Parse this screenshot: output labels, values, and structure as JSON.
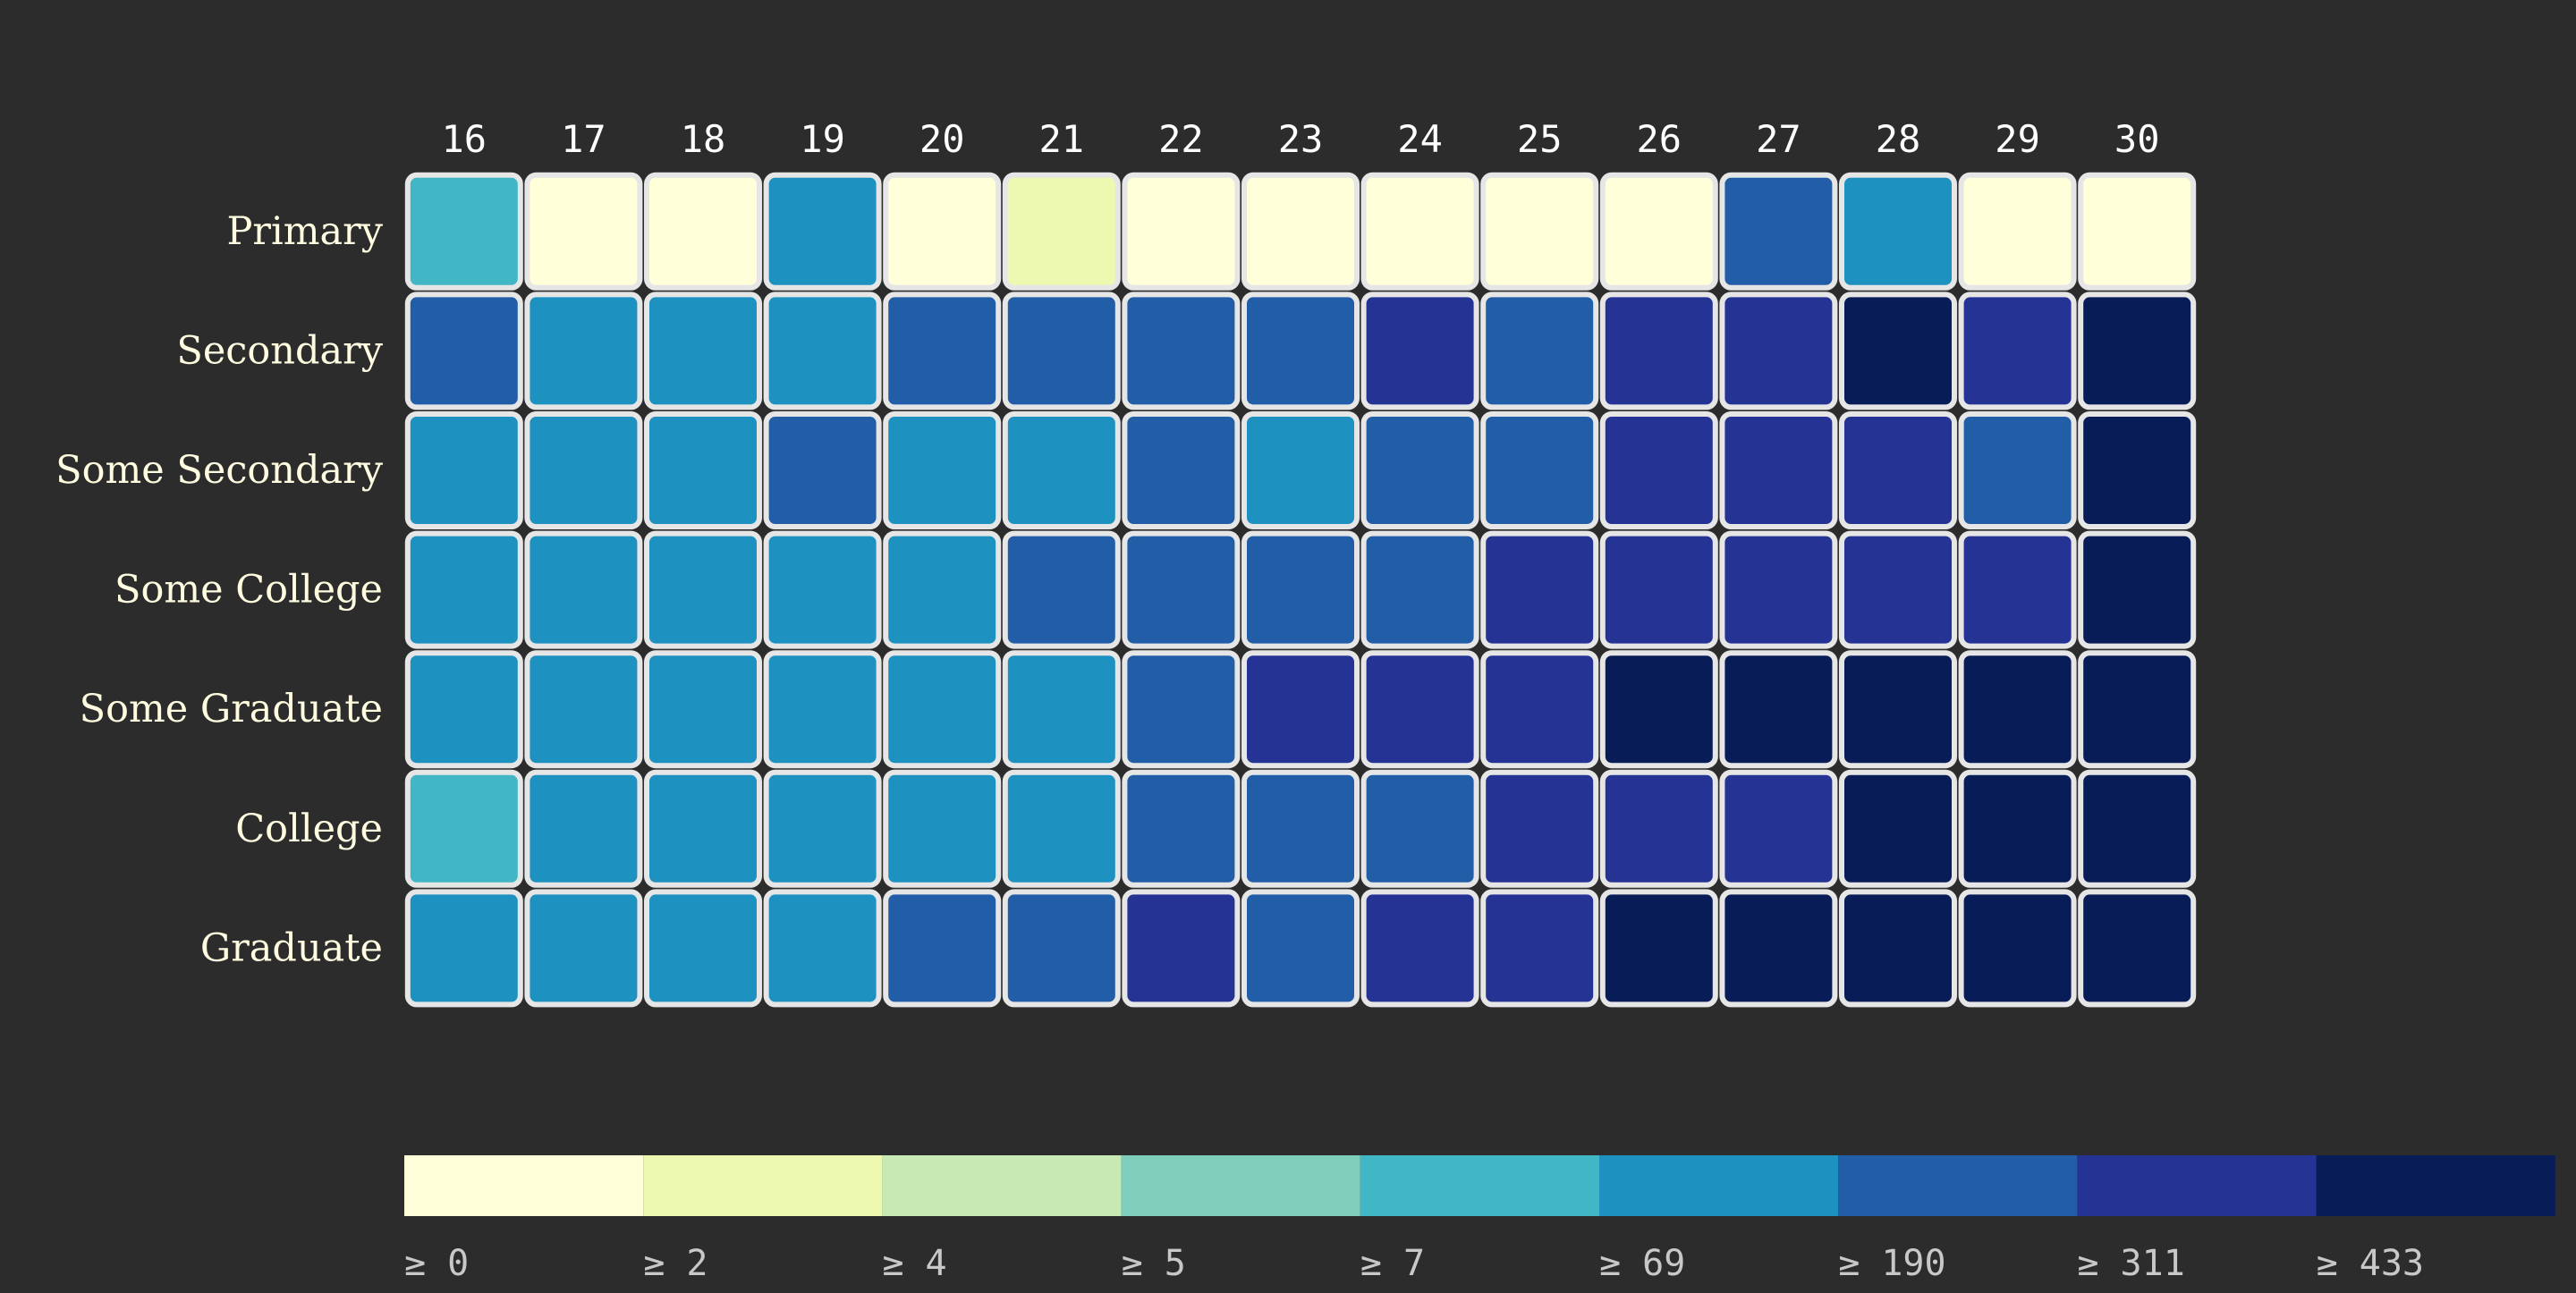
{
  "chart_data": {
    "type": "heatmap",
    "x": [
      "16",
      "17",
      "18",
      "19",
      "20",
      "21",
      "22",
      "23",
      "24",
      "25",
      "26",
      "27",
      "28",
      "29",
      "30"
    ],
    "y": [
      "Primary",
      "Secondary",
      "Some Secondary",
      "Some College",
      "Some Graduate",
      "College",
      "Graduate"
    ],
    "bins": {
      "thresholds": [
        0,
        2,
        4,
        5,
        7,
        69,
        190,
        311,
        433
      ],
      "labels": [
        "≥ 0",
        "≥ 2",
        "≥ 4",
        "≥ 5",
        "≥ 7",
        "≥ 69",
        "≥ 190",
        "≥ 311",
        "≥ 433"
      ],
      "colors": [
        "#ffffd9",
        "#edf8b1",
        "#c7e9b4",
        "#7fcdbb",
        "#41b6c4",
        "#1d91c0",
        "#225ea8",
        "#253494",
        "#081d58"
      ]
    },
    "bin_index": [
      [
        4,
        0,
        0,
        5,
        0,
        1,
        0,
        0,
        0,
        0,
        0,
        6,
        5,
        0,
        0
      ],
      [
        6,
        5,
        5,
        5,
        6,
        6,
        6,
        6,
        7,
        6,
        7,
        7,
        8,
        7,
        8
      ],
      [
        5,
        5,
        5,
        6,
        5,
        5,
        6,
        5,
        6,
        6,
        7,
        7,
        7,
        6,
        8
      ],
      [
        5,
        5,
        5,
        5,
        5,
        6,
        6,
        6,
        6,
        7,
        7,
        7,
        7,
        7,
        8
      ],
      [
        5,
        5,
        5,
        5,
        5,
        5,
        6,
        7,
        7,
        7,
        8,
        8,
        8,
        8,
        8
      ],
      [
        4,
        5,
        5,
        5,
        5,
        5,
        6,
        6,
        6,
        7,
        7,
        7,
        8,
        8,
        8
      ],
      [
        5,
        5,
        5,
        5,
        6,
        6,
        7,
        6,
        7,
        7,
        8,
        8,
        8,
        8,
        8
      ]
    ],
    "legend_position": "bottom"
  }
}
